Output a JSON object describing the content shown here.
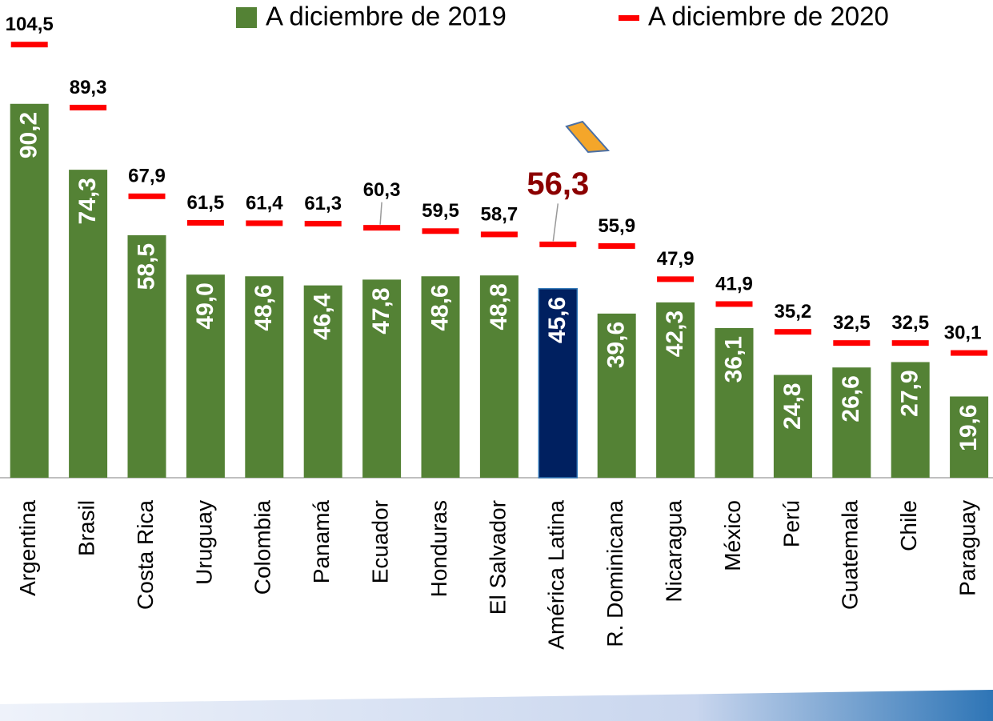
{
  "chart_data": {
    "type": "bar",
    "categories": [
      "Argentina",
      "Brasil",
      "Costa Rica",
      "Uruguay",
      "Colombia",
      "Panamá",
      "Ecuador",
      "Honduras",
      "El Salvador",
      "América Latina",
      "R. Dominicana",
      "Nicaragua",
      "México",
      "Perú",
      "Guatemala",
      "Chile",
      "Paraguay"
    ],
    "series": [
      {
        "name": "A diciembre de 2019",
        "color": "#548235",
        "colors": [
          "#548235",
          "#548235",
          "#548235",
          "#548235",
          "#548235",
          "#548235",
          "#548235",
          "#548235",
          "#548235",
          "#002060",
          "#548235",
          "#548235",
          "#548235",
          "#548235",
          "#548235",
          "#548235",
          "#548235"
        ],
        "values": [
          90.2,
          74.3,
          58.5,
          49.0,
          48.6,
          46.4,
          47.8,
          48.6,
          48.8,
          45.6,
          39.6,
          42.3,
          36.1,
          24.8,
          26.6,
          27.9,
          19.6
        ],
        "value_labels": [
          "90,2",
          "74,3",
          "58,5",
          "49,0",
          "48,6",
          "46,4",
          "47,8",
          "48,6",
          "48,8",
          "45,6",
          "39,6",
          "42,3",
          "36,1",
          "24,8",
          "26,6",
          "27,9",
          "19,6"
        ]
      },
      {
        "name": "A diciembre de 2020",
        "color": "#ff0000",
        "value_label_colors": [
          "#000000",
          "#000000",
          "#000000",
          "#000000",
          "#000000",
          "#000000",
          "#000000",
          "#000000",
          "#000000",
          "#8b0000",
          "#000000",
          "#000000",
          "#000000",
          "#000000",
          "#000000",
          "#000000",
          "#000000"
        ],
        "values": [
          104.5,
          89.3,
          67.9,
          61.5,
          61.4,
          61.3,
          60.3,
          59.5,
          58.7,
          56.3,
          55.9,
          47.9,
          41.9,
          35.2,
          32.5,
          32.5,
          30.1
        ],
        "value_labels": [
          "104,5",
          "89,3",
          "67,9",
          "61,5",
          "61,4",
          "61,3",
          "60,3",
          "59,5",
          "58,7",
          "56,3",
          "55,9",
          "47,9",
          "41,9",
          "35,2",
          "32,5",
          "32,5",
          "30,1"
        ]
      }
    ],
    "ylim": [
      0,
      115
    ]
  }
}
